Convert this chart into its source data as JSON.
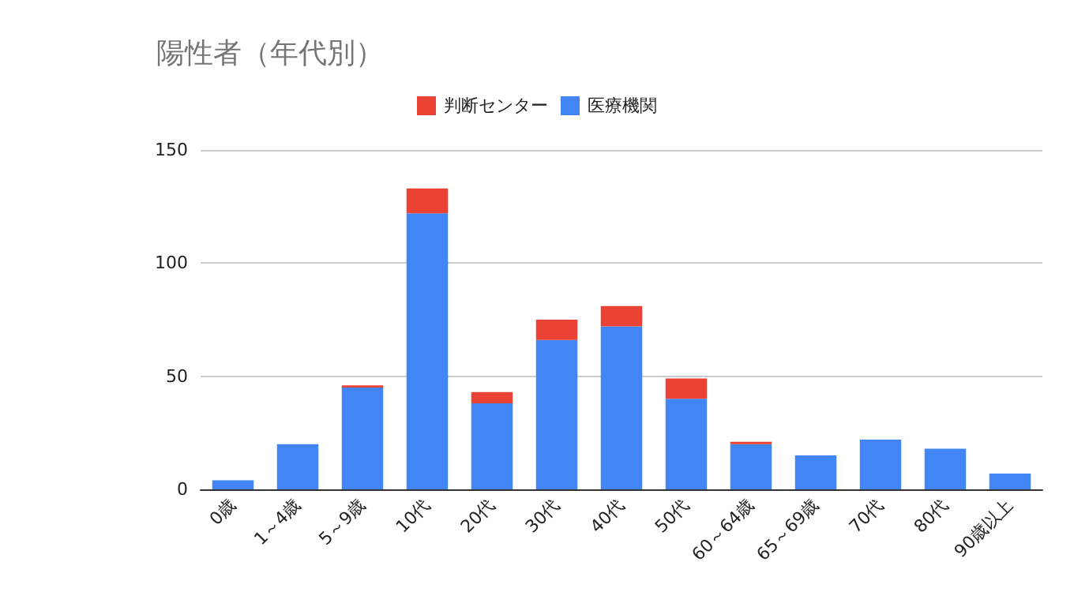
{
  "chart_data": {
    "type": "bar",
    "title": "陽性者（年代別）",
    "stacked": true,
    "legend": "top",
    "grid": "y",
    "categories": [
      "0歳",
      "1～4歳",
      "5～9歳",
      "10代",
      "20代",
      "30代",
      "40代",
      "50代",
      "60～64歳",
      "65～69歳",
      "70代",
      "80代",
      "90歳以上"
    ],
    "series": [
      {
        "name": "医療機関",
        "color": "#4285f4",
        "values": [
          4,
          20,
          45,
          122,
          38,
          66,
          72,
          40,
          20,
          15,
          22,
          18,
          7
        ]
      },
      {
        "name": "判断センター",
        "color": "#ea4335",
        "values": [
          0,
          0,
          1,
          11,
          5,
          9,
          9,
          9,
          1,
          0,
          0,
          0,
          0
        ]
      }
    ],
    "ylim": [
      0,
      150
    ],
    "yticks": [
      0,
      50,
      100,
      150
    ]
  }
}
